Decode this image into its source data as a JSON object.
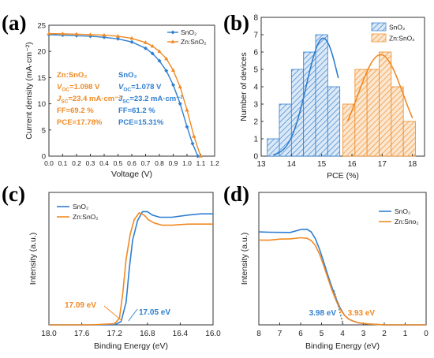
{
  "chart_data": [
    {
      "panel": "(a)",
      "type": "line",
      "xlabel": "Voltage (V)",
      "ylabel": "Current density (mA·cm⁻²)",
      "xlim": [
        0.0,
        1.2
      ],
      "ylim": [
        0,
        25
      ],
      "xticks": [
        "0.0",
        "0.1",
        "0.2",
        "0.3",
        "0.4",
        "0.5",
        "0.6",
        "0.7",
        "0.8",
        "0.9",
        "1.0",
        "1.1",
        "1.2"
      ],
      "yticks": [
        "0",
        "5",
        "10",
        "15",
        "20",
        "25"
      ],
      "legend": [
        "SnO₂",
        "Zn:SnO₂"
      ],
      "legend_position": "top-right",
      "series": [
        {
          "name": "SnO₂",
          "color": "#2f7fd0",
          "marker": "diamond",
          "x": [
            0,
            0.1,
            0.2,
            0.3,
            0.4,
            0.5,
            0.6,
            0.7,
            0.75,
            0.8,
            0.85,
            0.9,
            0.95,
            1.0,
            1.04,
            1.078
          ],
          "y": [
            23.2,
            23.1,
            23.0,
            22.9,
            22.7,
            22.4,
            21.8,
            20.6,
            19.6,
            18.2,
            16.3,
            13.6,
            10.0,
            5.6,
            2.4,
            0
          ]
        },
        {
          "name": "Zn:SnO₂",
          "color": "#f08a24",
          "marker": "triangle",
          "x": [
            0,
            0.1,
            0.2,
            0.3,
            0.4,
            0.5,
            0.6,
            0.7,
            0.75,
            0.8,
            0.85,
            0.9,
            0.95,
            1.0,
            1.05,
            1.098
          ],
          "y": [
            23.4,
            23.35,
            23.3,
            23.2,
            23.1,
            22.9,
            22.5,
            21.7,
            21.0,
            20.0,
            18.6,
            16.4,
            13.2,
            8.8,
            3.8,
            0
          ]
        }
      ],
      "annotations": [
        {
          "label": "Zn:SnO₂",
          "color": "#f08a24",
          "lines": [
            {
              "prefix": "V",
              "sub": "OC",
              "text": "=1.098 V"
            },
            {
              "prefix": "J",
              "sub": "SC",
              "text": "=23.4 mA·cm⁻²"
            },
            {
              "prefix": "",
              "sub": "",
              "text": "FF=69.2 %"
            },
            {
              "prefix": "",
              "sub": "",
              "text": "PCE=17.78%"
            }
          ]
        },
        {
          "label": "SnO₂",
          "color": "#2f7fd0",
          "lines": [
            {
              "prefix": "V",
              "sub": "OC",
              "text": "=1.078 V"
            },
            {
              "prefix": "J",
              "sub": "SC",
              "text": "=23.2 mA·cm⁻²"
            },
            {
              "prefix": "",
              "sub": "",
              "text": "FF=61.2 %"
            },
            {
              "prefix": "",
              "sub": "",
              "text": "PCE=15.31%"
            }
          ]
        }
      ]
    },
    {
      "panel": "(b)",
      "type": "bar",
      "xlabel": "PCE (%)",
      "ylabel": "Number of devices",
      "xlim": [
        13,
        18.4
      ],
      "ylim": [
        0,
        8
      ],
      "xticks": [
        "13",
        "14",
        "15",
        "16",
        "17",
        "18"
      ],
      "yticks": [
        "0",
        "1",
        "2",
        "3",
        "4",
        "5",
        "6",
        "7",
        "8"
      ],
      "legend": [
        "SnO₂",
        "Zn:SnO₂"
      ],
      "legend_position": "top-right",
      "bin_width": 0.4,
      "series": [
        {
          "name": "SnO₂",
          "color": "#2f7fd0",
          "bin_centers": [
            13.4,
            13.8,
            14.2,
            14.6,
            15.0,
            15.4
          ],
          "counts": [
            1,
            3,
            5,
            6,
            7,
            4
          ]
        },
        {
          "name": "Zn:SnO₂",
          "color": "#f08a24",
          "bin_centers": [
            15.9,
            16.3,
            16.7,
            17.1,
            17.5,
            17.9
          ],
          "counts": [
            3,
            5,
            5,
            6,
            4,
            2
          ]
        }
      ],
      "fits": [
        {
          "color": "#2f7fd0",
          "mean": 15.05,
          "sigma": 0.55,
          "amp": 6.8,
          "xrange": [
            13.4,
            15.55
          ]
        },
        {
          "color": "#f08a24",
          "mean": 16.95,
          "sigma": 0.75,
          "amp": 5.85,
          "xrange": [
            15.85,
            18.0
          ]
        }
      ]
    },
    {
      "panel": "(c)",
      "type": "line",
      "xlabel": "Binding Energy (eV)",
      "ylabel": "Intensity (a.u.)",
      "xlim": [
        18.0,
        16.0
      ],
      "xticks": [
        "18.0",
        "17.6",
        "17.2",
        "16.8",
        "16.4",
        "16.0"
      ],
      "legend": [
        "SnO₂",
        "Zn:SnO₂"
      ],
      "legend_position": "top-left",
      "series": [
        {
          "name": "SnO₂",
          "color": "#2f7fd0",
          "x": [
            18.0,
            17.5,
            17.2,
            17.12,
            17.06,
            17.02,
            16.98,
            16.92,
            16.86,
            16.8,
            16.74,
            16.65,
            16.5,
            16.3,
            16.15,
            16.0
          ],
          "y": [
            0,
            0,
            0,
            0.03,
            0.2,
            0.5,
            0.75,
            0.92,
            1.0,
            1.0,
            0.97,
            0.95,
            0.95,
            0.97,
            0.98,
            0.98
          ]
        },
        {
          "name": "Zn:SnO₂",
          "color": "#f08a24",
          "x": [
            18.0,
            17.5,
            17.2,
            17.14,
            17.1,
            17.06,
            17.01,
            16.96,
            16.9,
            16.84,
            16.79,
            16.72,
            16.62,
            16.5,
            16.3,
            16.0
          ],
          "y": [
            0,
            0,
            0.01,
            0.06,
            0.28,
            0.58,
            0.8,
            0.93,
            0.99,
            0.97,
            0.93,
            0.9,
            0.88,
            0.88,
            0.89,
            0.89
          ]
        }
      ],
      "annotations": [
        {
          "text": "17.09 eV",
          "color": "#f08a24",
          "x": 17.09
        },
        {
          "text": "17.05 eV",
          "color": "#2f7fd0",
          "x": 17.05
        }
      ]
    },
    {
      "panel": "(d)",
      "type": "line",
      "xlabel": "Binding Energy (eV)",
      "ylabel": "Intensity (a.u.)",
      "xlim": [
        8,
        0
      ],
      "xticks": [
        "8",
        "7",
        "6",
        "5",
        "4",
        "3",
        "2",
        "1",
        "0"
      ],
      "legend": [
        "SnO₂",
        "Zn:Sno₂"
      ],
      "legend_position": "top-right",
      "series": [
        {
          "name": "SnO₂",
          "color": "#2f7fd0",
          "x": [
            8,
            7.5,
            7,
            6.5,
            6,
            5.7,
            5.5,
            5.3,
            5.1,
            4.9,
            4.7,
            4.5,
            4.3,
            4.1,
            3.9,
            3.7,
            3.5,
            3.2,
            2.8,
            2,
            1,
            0
          ],
          "y": [
            0.97,
            0.97,
            0.96,
            0.97,
            0.99,
            1.0,
            0.97,
            0.9,
            0.79,
            0.66,
            0.52,
            0.39,
            0.27,
            0.17,
            0.1,
            0.06,
            0.04,
            0.02,
            0.01,
            0,
            0,
            0
          ]
        },
        {
          "name": "Zn:Sno₂",
          "color": "#f08a24",
          "x": [
            8,
            7.5,
            7,
            6.5,
            6,
            5.7,
            5.5,
            5.3,
            5.1,
            4.9,
            4.7,
            4.5,
            4.3,
            4.1,
            3.9,
            3.7,
            3.5,
            3.2,
            2.8,
            2,
            1,
            0
          ],
          "y": [
            0.88,
            0.89,
            0.89,
            0.9,
            0.91,
            0.9,
            0.88,
            0.83,
            0.74,
            0.62,
            0.49,
            0.36,
            0.25,
            0.16,
            0.1,
            0.06,
            0.04,
            0.02,
            0.01,
            0,
            0,
            0
          ]
        }
      ],
      "annotations": [
        {
          "text": "3.98 eV",
          "color": "#2f7fd0",
          "x": 3.98
        },
        {
          "text": "3.93 eV",
          "color": "#f08a24",
          "x": 3.93
        }
      ]
    }
  ]
}
